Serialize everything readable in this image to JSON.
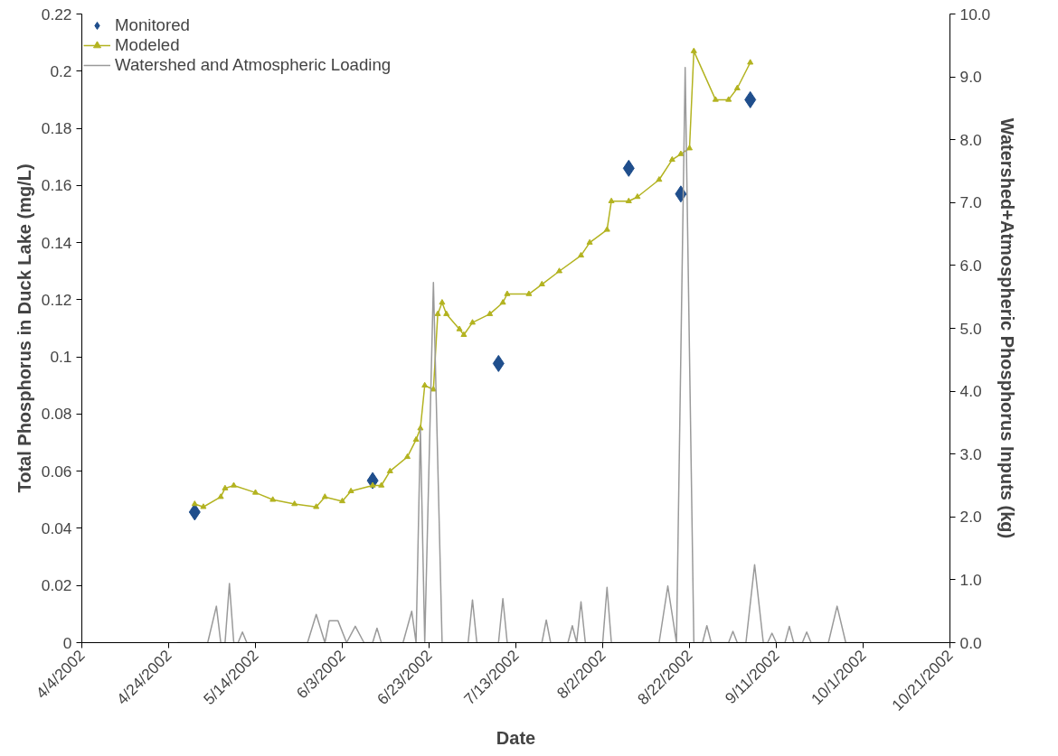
{
  "chart_data": {
    "type": "line",
    "xlabel": "Date",
    "ylabel": "Total Phosphorus in Duck Lake (mg/L)",
    "y2label": "Watershed+Atmospheric Phosphorus Inputs (kg)",
    "xlim": [
      "2002-04-04",
      "2002-10-21"
    ],
    "xticks": [
      {
        "value": "2002-04-04",
        "label": "4/4/2002"
      },
      {
        "value": "2002-04-24",
        "label": "4/24/2002"
      },
      {
        "value": "2002-05-14",
        "label": "5/14/2002"
      },
      {
        "value": "2002-06-03",
        "label": "6/3/2002"
      },
      {
        "value": "2002-06-23",
        "label": "6/23/2002"
      },
      {
        "value": "2002-07-13",
        "label": "7/13/2002"
      },
      {
        "value": "2002-08-02",
        "label": "8/2/2002"
      },
      {
        "value": "2002-08-22",
        "label": "8/22/2002"
      },
      {
        "value": "2002-09-11",
        "label": "9/11/2002"
      },
      {
        "value": "2002-10-01",
        "label": "10/1/2002"
      },
      {
        "value": "2002-10-21",
        "label": "10/21/2002"
      }
    ],
    "ylim": [
      0,
      0.22
    ],
    "yticks": [
      0,
      0.02,
      0.04,
      0.06,
      0.08,
      0.1,
      0.12,
      0.14,
      0.16,
      0.18,
      0.2,
      0.22
    ],
    "y2lim": [
      0,
      10
    ],
    "y2ticks": [
      {
        "value": 0,
        "label": "0.0"
      },
      {
        "value": 1,
        "label": "1.0"
      },
      {
        "value": 2,
        "label": "2.0"
      },
      {
        "value": 3,
        "label": "3.0"
      },
      {
        "value": 4,
        "label": "4.0"
      },
      {
        "value": 5,
        "label": "5.0"
      },
      {
        "value": 6,
        "label": "6.0"
      },
      {
        "value": 7,
        "label": "7.0"
      },
      {
        "value": 8,
        "label": "8.0"
      },
      {
        "value": 9,
        "label": "9.0"
      },
      {
        "value": 10,
        "label": "10.0"
      }
    ],
    "grid": false,
    "legend": "top left",
    "series": [
      {
        "name": "Monitored",
        "type": "scatter",
        "marker": "diamond",
        "color": "#1f4e8c",
        "x": [
          "2002-04-30",
          "2002-06-10",
          "2002-07-09",
          "2002-08-08",
          "2002-08-20",
          "2002-09-05"
        ],
        "values": [
          0.0457,
          0.0567,
          0.0977,
          0.166,
          0.157,
          0.19
        ]
      },
      {
        "name": "Modeled",
        "marker": "triangle",
        "color": "#b3b320",
        "x": [
          "2002-04-30",
          "2002-05-02",
          "2002-05-06",
          "2002-05-07",
          "2002-05-09",
          "2002-05-14",
          "2002-05-18",
          "2002-05-23",
          "2002-05-28",
          "2002-05-30",
          "2002-06-03",
          "2002-06-05",
          "2002-06-10",
          "2002-06-12",
          "2002-06-14",
          "2002-06-18",
          "2002-06-20",
          "2002-06-21",
          "2002-06-22",
          "2002-06-24",
          "2002-06-25",
          "2002-06-26",
          "2002-06-27",
          "2002-06-30",
          "2002-07-01",
          "2002-07-03",
          "2002-07-07",
          "2002-07-10",
          "2002-07-11",
          "2002-07-16",
          "2002-07-19",
          "2002-07-23",
          "2002-07-28",
          "2002-07-30",
          "2002-08-03",
          "2002-08-04",
          "2002-08-08",
          "2002-08-10",
          "2002-08-15",
          "2002-08-18",
          "2002-08-20",
          "2002-08-22",
          "2002-08-23",
          "2002-08-28",
          "2002-08-31",
          "2002-09-02",
          "2002-09-05"
        ],
        "values": [
          0.0485,
          0.0475,
          0.051,
          0.054,
          0.055,
          0.0525,
          0.05,
          0.0485,
          0.0475,
          0.051,
          0.0495,
          0.053,
          0.055,
          0.055,
          0.06,
          0.065,
          0.071,
          0.075,
          0.09,
          0.0886,
          0.115,
          0.119,
          0.115,
          0.1097,
          0.1077,
          0.112,
          0.115,
          0.119,
          0.122,
          0.122,
          0.1254,
          0.13,
          0.1355,
          0.14,
          0.1445,
          0.1545,
          0.1545,
          0.156,
          0.162,
          0.169,
          0.171,
          0.173,
          0.207,
          0.19,
          0.19,
          0.194,
          0.203
        ]
      },
      {
        "name": "Watershed and Atmospheric Loading",
        "marker": "none",
        "axis": "y2",
        "color": "#9a9a9a",
        "x": [
          "2002-04-26",
          "2002-05-03",
          "2002-05-05",
          "2002-05-06",
          "2002-05-07",
          "2002-05-08",
          "2002-05-09",
          "2002-05-10",
          "2002-05-11",
          "2002-05-12",
          "2002-05-26",
          "2002-05-28",
          "2002-05-30",
          "2002-05-31",
          "2002-06-02",
          "2002-06-04",
          "2002-06-06",
          "2002-06-08",
          "2002-06-10",
          "2002-06-11",
          "2002-06-12",
          "2002-06-17",
          "2002-06-19",
          "2002-06-20",
          "2002-06-21",
          "2002-06-22",
          "2002-06-24",
          "2002-06-26",
          "2002-07-02",
          "2002-07-03",
          "2002-07-04",
          "2002-07-09",
          "2002-07-10",
          "2002-07-11",
          "2002-07-19",
          "2002-07-20",
          "2002-07-21",
          "2002-07-25",
          "2002-07-26",
          "2002-07-27",
          "2002-07-28",
          "2002-07-29",
          "2002-08-02",
          "2002-08-03",
          "2002-08-04",
          "2002-08-15",
          "2002-08-17",
          "2002-08-19",
          "2002-08-21",
          "2002-08-23",
          "2002-08-25",
          "2002-08-26",
          "2002-08-27",
          "2002-08-31",
          "2002-09-01",
          "2002-09-02",
          "2002-09-04",
          "2002-09-06",
          "2002-09-08",
          "2002-09-09",
          "2002-09-10",
          "2002-09-11",
          "2002-09-13",
          "2002-09-14",
          "2002-09-15",
          "2002-09-17",
          "2002-09-18",
          "2002-09-19",
          "2002-09-23",
          "2002-09-25",
          "2002-09-27",
          "2002-10-01"
        ],
        "values": [
          0,
          0,
          0.58,
          0,
          0,
          0.94,
          0,
          0,
          0.17,
          0,
          0,
          0.45,
          0,
          0.35,
          0.35,
          0,
          0.26,
          0,
          0,
          0.23,
          0,
          0,
          0.5,
          0,
          3.4,
          0,
          5.73,
          0,
          0,
          0.68,
          0,
          0,
          0.7,
          0,
          0,
          0.36,
          0,
          0,
          0.27,
          0,
          0.65,
          0,
          0,
          0.88,
          0,
          0,
          0.9,
          0,
          9.15,
          0,
          0,
          0.27,
          0,
          0,
          0.18,
          0,
          0,
          1.24,
          0,
          0,
          0.15,
          0,
          0,
          0.26,
          0,
          0,
          0.17,
          0,
          0,
          0.58,
          0,
          0
        ]
      }
    ]
  }
}
